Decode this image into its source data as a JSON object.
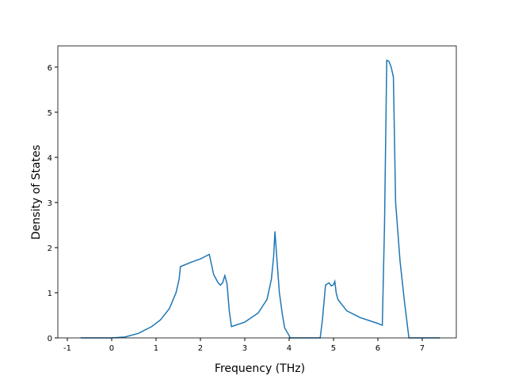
{
  "chart_data": {
    "type": "line",
    "xlabel": "Frequency (THz)",
    "ylabel": "Density of States",
    "xlim": [
      -1.214,
      7.768
    ],
    "ylim": [
      0,
      6.47
    ],
    "xticks": [
      -1,
      0,
      1,
      2,
      3,
      4,
      5,
      6,
      7
    ],
    "yticks": [
      0,
      1,
      2,
      3,
      4,
      5,
      6
    ],
    "series": [
      {
        "color": "#1f77b4",
        "x": [
          -0.7,
          0,
          0.3,
          0.6,
          0.9,
          1.1,
          1.3,
          1.45,
          1.52,
          1.55,
          1.6,
          1.8,
          2.0,
          2.2,
          2.3,
          2.4,
          2.45,
          2.5,
          2.55,
          2.6,
          2.65,
          2.7,
          3.0,
          3.3,
          3.5,
          3.6,
          3.65,
          3.68,
          3.72,
          3.78,
          3.85,
          3.9,
          4.0,
          4.02,
          4.7,
          4.75,
          4.82,
          4.9,
          4.95,
          5.0,
          5.03,
          5.06,
          5.1,
          5.3,
          5.6,
          6.0,
          6.1,
          6.15,
          6.2,
          6.25,
          6.3,
          6.35,
          6.4,
          6.5,
          6.6,
          6.7,
          7.4
        ],
        "values": [
          0,
          0,
          0.02,
          0.1,
          0.25,
          0.4,
          0.65,
          1.0,
          1.3,
          1.58,
          1.6,
          1.68,
          1.75,
          1.85,
          1.4,
          1.22,
          1.17,
          1.22,
          1.38,
          1.2,
          0.6,
          0.25,
          0.35,
          0.55,
          0.85,
          1.3,
          1.8,
          2.36,
          1.8,
          1.0,
          0.5,
          0.22,
          0.05,
          0,
          0,
          0.4,
          1.17,
          1.22,
          1.15,
          1.18,
          1.25,
          1.0,
          0.85,
          0.6,
          0.45,
          0.32,
          0.28,
          2.5,
          6.15,
          6.13,
          6.0,
          5.78,
          3.0,
          1.7,
          0.8,
          0,
          0
        ]
      }
    ]
  }
}
